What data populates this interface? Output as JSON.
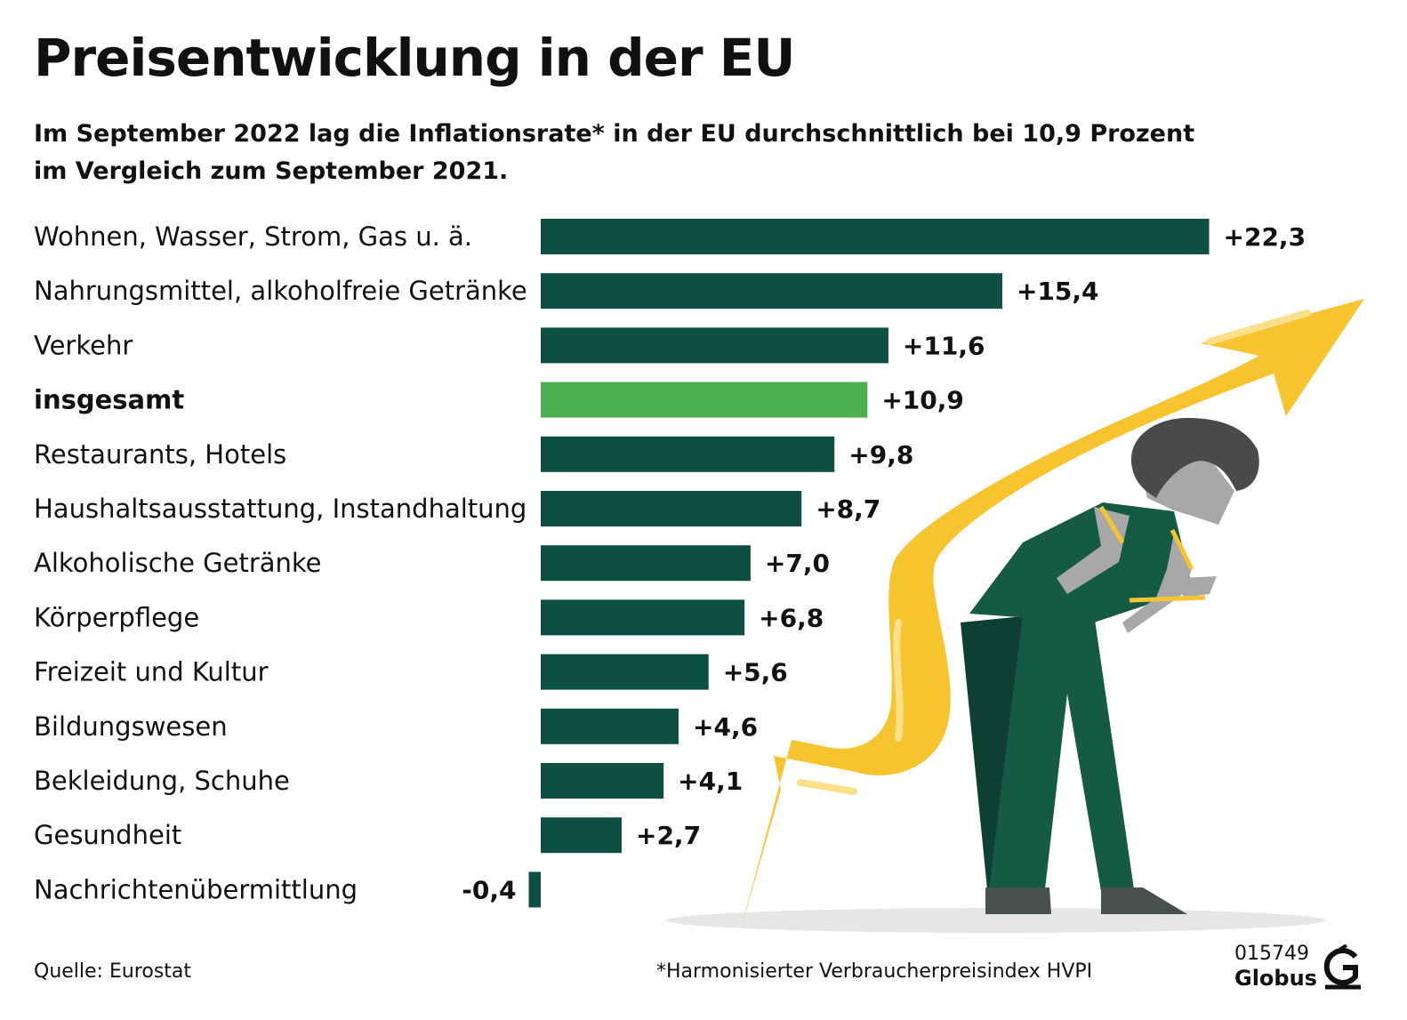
{
  "header": {
    "title": "Preisentwicklung in der EU",
    "subtitle": "Im September 2022 lag die Inflationsrate* in der EU durchschnittlich bei 10,9 Prozent im Vergleich zum September 2021."
  },
  "footer": {
    "source": "Quelle: Eurostat",
    "footnote": "*Harmonisierter Verbraucherpreisindex HVPI",
    "code": "015749",
    "brand": "Globus"
  },
  "colors": {
    "bar": "#0e4f43",
    "highlight": "#4caf50",
    "arrow": "#f7c32e",
    "arrow_light": "#fbe08a",
    "figure_green": "#155a44",
    "figure_gray": "#a8a8a8",
    "hair": "#4a4a4a"
  },
  "chart_data": {
    "type": "bar",
    "orientation": "horizontal",
    "unit": "Prozent",
    "highlight_category": "insgesamt",
    "categories": [
      "Wohnen, Wasser, Strom, Gas u. ä.",
      "Nahrungsmittel, alkoholfreie Getränke",
      "Verkehr",
      "insgesamt",
      "Restaurants, Hotels",
      "Haushaltsausstattung, Instandhaltung",
      "Alkoholische Getränke",
      "Körperpflege",
      "Freizeit und Kultur",
      "Bildungswesen",
      "Bekleidung, Schuhe",
      "Gesundheit",
      "Nachrichtenübermittlung"
    ],
    "values": [
      22.3,
      15.4,
      11.6,
      10.9,
      9.8,
      8.7,
      7.0,
      6.8,
      5.6,
      4.6,
      4.1,
      2.7,
      -0.4
    ],
    "labels": [
      "+22,3",
      "+15,4",
      "+11,6",
      "+10,9",
      "+9,8",
      "+8,7",
      "+7,0",
      "+6,8",
      "+5,6",
      "+4,6",
      "+4,1",
      "+2,7",
      "-0,4"
    ]
  }
}
